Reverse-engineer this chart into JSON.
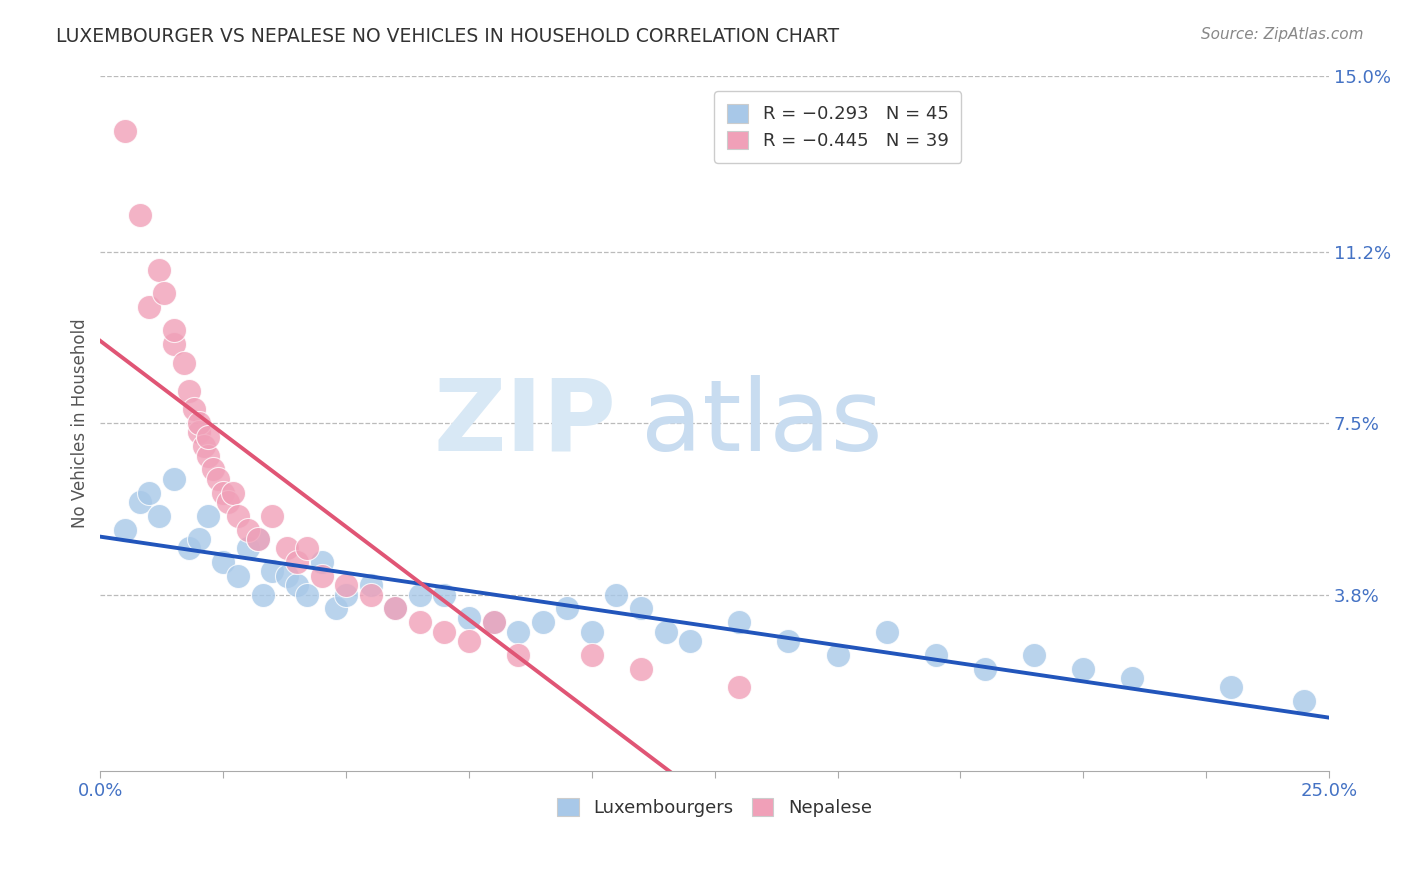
{
  "title": "LUXEMBOURGER VS NEPALESE NO VEHICLES IN HOUSEHOLD CORRELATION CHART",
  "source": "Source: ZipAtlas.com",
  "ylabel": "No Vehicles in Household",
  "xlim": [
    0.0,
    0.25
  ],
  "ylim": [
    0.0,
    0.15
  ],
  "ytick_right_labels": [
    "3.8%",
    "7.5%",
    "11.2%",
    "15.0%"
  ],
  "ytick_right_values": [
    0.038,
    0.075,
    0.112,
    0.15
  ],
  "color_lux": "#A8C8E8",
  "color_nep": "#F0A0B8",
  "color_lux_line": "#2255BB",
  "color_nep_line": "#E05575",
  "lux_points": [
    [
      0.005,
      0.052
    ],
    [
      0.008,
      0.058
    ],
    [
      0.01,
      0.06
    ],
    [
      0.012,
      0.055
    ],
    [
      0.015,
      0.063
    ],
    [
      0.018,
      0.048
    ],
    [
      0.02,
      0.05
    ],
    [
      0.022,
      0.055
    ],
    [
      0.025,
      0.045
    ],
    [
      0.028,
      0.042
    ],
    [
      0.03,
      0.048
    ],
    [
      0.032,
      0.05
    ],
    [
      0.033,
      0.038
    ],
    [
      0.035,
      0.043
    ],
    [
      0.038,
      0.042
    ],
    [
      0.04,
      0.04
    ],
    [
      0.042,
      0.038
    ],
    [
      0.045,
      0.045
    ],
    [
      0.048,
      0.035
    ],
    [
      0.05,
      0.038
    ],
    [
      0.055,
      0.04
    ],
    [
      0.06,
      0.035
    ],
    [
      0.065,
      0.038
    ],
    [
      0.07,
      0.038
    ],
    [
      0.075,
      0.033
    ],
    [
      0.08,
      0.032
    ],
    [
      0.085,
      0.03
    ],
    [
      0.09,
      0.032
    ],
    [
      0.095,
      0.035
    ],
    [
      0.1,
      0.03
    ],
    [
      0.105,
      0.038
    ],
    [
      0.11,
      0.035
    ],
    [
      0.115,
      0.03
    ],
    [
      0.12,
      0.028
    ],
    [
      0.13,
      0.032
    ],
    [
      0.14,
      0.028
    ],
    [
      0.15,
      0.025
    ],
    [
      0.16,
      0.03
    ],
    [
      0.17,
      0.025
    ],
    [
      0.18,
      0.022
    ],
    [
      0.19,
      0.025
    ],
    [
      0.2,
      0.022
    ],
    [
      0.21,
      0.02
    ],
    [
      0.23,
      0.018
    ],
    [
      0.245,
      0.015
    ]
  ],
  "nep_points": [
    [
      0.005,
      0.138
    ],
    [
      0.008,
      0.12
    ],
    [
      0.01,
      0.1
    ],
    [
      0.012,
      0.108
    ],
    [
      0.013,
      0.103
    ],
    [
      0.015,
      0.092
    ],
    [
      0.015,
      0.095
    ],
    [
      0.017,
      0.088
    ],
    [
      0.018,
      0.082
    ],
    [
      0.019,
      0.078
    ],
    [
      0.02,
      0.073
    ],
    [
      0.02,
      0.075
    ],
    [
      0.021,
      0.07
    ],
    [
      0.022,
      0.068
    ],
    [
      0.022,
      0.072
    ],
    [
      0.023,
      0.065
    ],
    [
      0.024,
      0.063
    ],
    [
      0.025,
      0.06
    ],
    [
      0.026,
      0.058
    ],
    [
      0.027,
      0.06
    ],
    [
      0.028,
      0.055
    ],
    [
      0.03,
      0.052
    ],
    [
      0.032,
      0.05
    ],
    [
      0.035,
      0.055
    ],
    [
      0.038,
      0.048
    ],
    [
      0.04,
      0.045
    ],
    [
      0.042,
      0.048
    ],
    [
      0.045,
      0.042
    ],
    [
      0.05,
      0.04
    ],
    [
      0.055,
      0.038
    ],
    [
      0.06,
      0.035
    ],
    [
      0.065,
      0.032
    ],
    [
      0.07,
      0.03
    ],
    [
      0.075,
      0.028
    ],
    [
      0.08,
      0.032
    ],
    [
      0.085,
      0.025
    ],
    [
      0.1,
      0.025
    ],
    [
      0.11,
      0.022
    ],
    [
      0.13,
      0.018
    ]
  ]
}
